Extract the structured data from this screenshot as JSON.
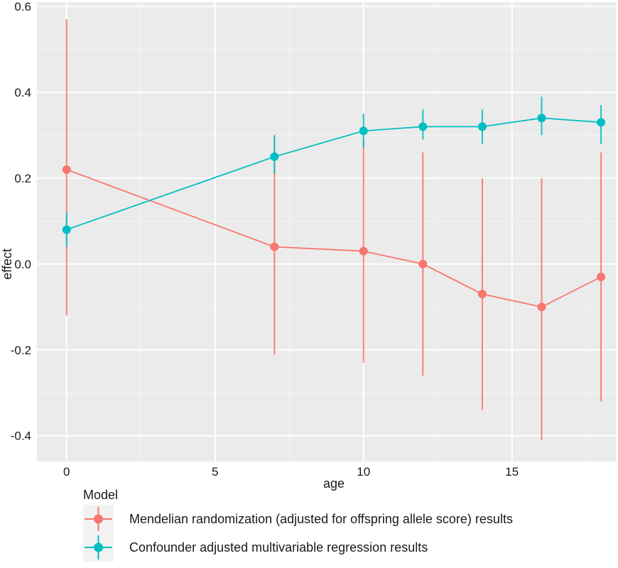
{
  "chart_data": {
    "type": "line",
    "xlabel": "age",
    "ylabel": "effect",
    "xlim": [
      -1,
      18.5
    ],
    "ylim": [
      -0.46,
      0.61
    ],
    "x_ticks": [
      0,
      5,
      10,
      15
    ],
    "x_tick_labels": [
      "0",
      "5",
      "10",
      "15"
    ],
    "y_ticks": [
      0.6,
      0.4,
      0.2,
      0.0,
      -0.2,
      -0.4
    ],
    "y_tick_labels": [
      "0.6",
      "0.4",
      "0.2",
      "0.0",
      "-0.2",
      "-0.4"
    ],
    "grid": true,
    "legend_position": "bottom-left",
    "legend_title": "Model",
    "series": [
      {
        "name": "Mendelian randomization (adjusted for offspring allele score) results",
        "color": "#F8766D",
        "x": [
          0,
          7,
          10,
          12,
          14,
          16,
          18
        ],
        "y": [
          0.22,
          0.04,
          0.03,
          0.0,
          -0.07,
          -0.1,
          -0.03
        ],
        "lower": [
          -0.12,
          -0.21,
          -0.23,
          -0.26,
          -0.34,
          -0.41,
          -0.32
        ],
        "upper": [
          0.57,
          0.3,
          0.29,
          0.26,
          0.2,
          0.2,
          0.26
        ]
      },
      {
        "name": "Confounder adjusted multivariable regression results",
        "color": "#00BFC4",
        "x": [
          0,
          7,
          10,
          12,
          14,
          16,
          18
        ],
        "y": [
          0.08,
          0.25,
          0.31,
          0.32,
          0.32,
          0.34,
          0.33
        ],
        "lower": [
          0.04,
          0.21,
          0.27,
          0.29,
          0.28,
          0.3,
          0.28
        ],
        "upper": [
          0.12,
          0.3,
          0.35,
          0.36,
          0.36,
          0.39,
          0.37
        ]
      }
    ]
  }
}
